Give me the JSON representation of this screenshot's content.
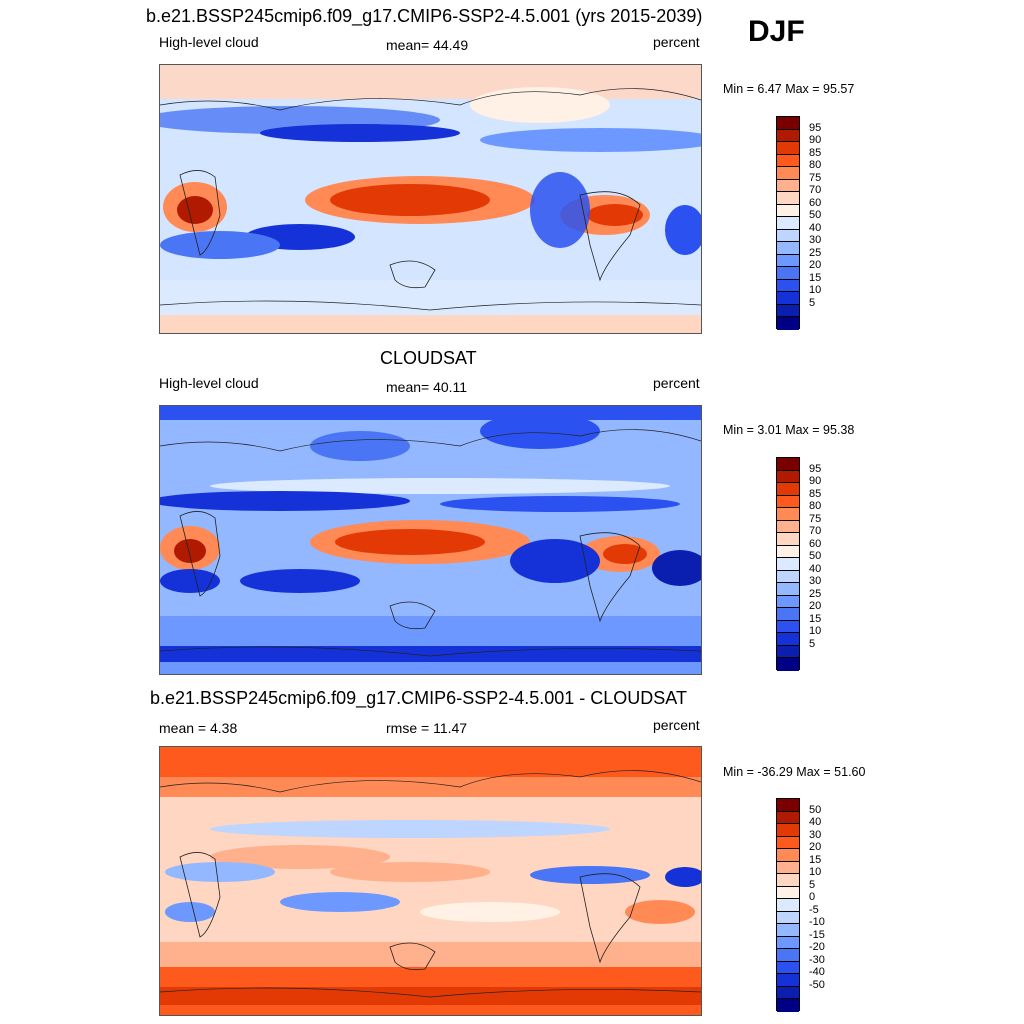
{
  "season": "DJF",
  "palette": {
    "p19": [
      "#7a0000",
      "#b01a00",
      "#e33a05",
      "#ff5a1e",
      "#ff8a55",
      "#ffb08c",
      "#ffd6c2",
      "#fff1e6",
      "#dceaff",
      "#bdd5ff",
      "#94b8ff",
      "#6c98ff",
      "#4a75f5",
      "#2b52f0",
      "#1432d8",
      "#0a1fb0",
      "#000086"
    ],
    "diff": [
      "#7a0000",
      "#b01a00",
      "#e33a05",
      "#ff5a1e",
      "#ff8a55",
      "#ffb08c",
      "#ffd6c2",
      "#fff1e6",
      "#dceaff",
      "#bdd5ff",
      "#94b8ff",
      "#6c98ff",
      "#4a75f5",
      "#2b52f0",
      "#1432d8",
      "#0a1fb0",
      "#000086"
    ]
  },
  "panels": [
    {
      "title": "b.e21.BSSP245cmip6.f09_g17.CMIP6-SSP2-4.5.001 (yrs 2015-2039)",
      "left_label": "High-level cloud",
      "center_label": "mean=  44.49",
      "right_label": "percent",
      "minmax": "Min =   6.47 Max =  95.57",
      "levels": [
        "95",
        "90",
        "85",
        "80",
        "75",
        "70",
        "60",
        "50",
        "40",
        "30",
        "25",
        "20",
        "15",
        "10",
        "5"
      ],
      "base_value": 42
    },
    {
      "title": "CLOUDSAT",
      "left_label": "High-level cloud",
      "center_label": "mean=  40.11",
      "right_label": "percent",
      "minmax": "Min =   3.01 Max =  95.38",
      "levels": [
        "95",
        "90",
        "85",
        "80",
        "75",
        "70",
        "60",
        "50",
        "40",
        "30",
        "25",
        "20",
        "15",
        "10",
        "5"
      ],
      "base_value": 35
    },
    {
      "title": "b.e21.BSSP245cmip6.f09_g17.CMIP6-SSP2-4.5.001 - CLOUDSAT",
      "left_label": "mean =   4.38",
      "center_label": "rmse =  11.47",
      "right_label": "percent",
      "minmax": "Min = -36.29 Max =  51.60",
      "levels": [
        "50",
        "40",
        "30",
        "20",
        "15",
        "10",
        "5",
        "0",
        "-5",
        "-10",
        "-15",
        "-20",
        "-30",
        "-40",
        "-50"
      ],
      "base_value": 0
    }
  ]
}
